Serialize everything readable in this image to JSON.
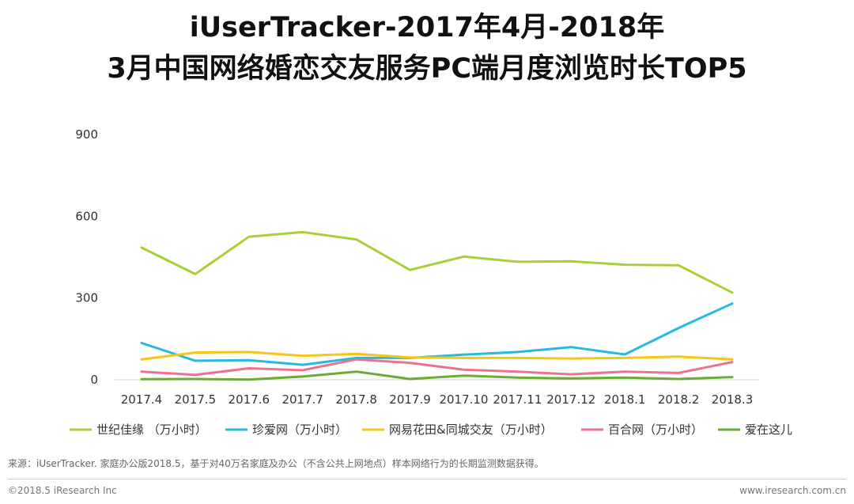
{
  "page": {
    "title_line1": "iUserTracker-2017年4月-2018年",
    "title_line2": "3月中国网络婚恋交友服务PC端月度浏览时长TOP5",
    "source": "来源：iUserTracker. 家庭办公版2018.5，基于对40万名家庭及办公（不含公共上网地点）样本网络行为的长期监测数据获得。",
    "copyright": "©2018.5 iResearch Inc",
    "website": "www.iresearch.com.cn"
  },
  "chart_data": {
    "type": "line",
    "title": "iUserTracker-2017年4月-2018年3月中国网络婚恋交友服务PC端月度浏览时长TOP5",
    "xlabel": "",
    "ylabel": "",
    "categories": [
      "2017.4",
      "2017.5",
      "2017.6",
      "2017.7",
      "2017.8",
      "2017.9",
      "2017.10",
      "2017.11",
      "2017.12",
      "2018.1",
      "2018.2",
      "2018.3"
    ],
    "yticks": [
      0,
      300,
      600,
      900
    ],
    "ylim": [
      0,
      900
    ],
    "grid": false,
    "legend_position": "bottom",
    "series": [
      {
        "name": "世纪佳缘 （万小时）",
        "color": "#a9cf38",
        "values": [
          485,
          388,
          525,
          542,
          515,
          403,
          452,
          433,
          435,
          422,
          420,
          320
        ]
      },
      {
        "name": "珍爱网（万小时）",
        "color": "#2bb8de",
        "values": [
          135,
          70,
          72,
          55,
          80,
          80,
          92,
          102,
          120,
          93,
          190,
          280
        ]
      },
      {
        "name": "网易花田&同城交友（万小时）",
        "color": "#f5c518",
        "values": [
          75,
          100,
          102,
          88,
          95,
          82,
          80,
          80,
          78,
          80,
          85,
          75
        ]
      },
      {
        "name": "百合网（万小时）",
        "color": "#ea7391",
        "values": [
          30,
          18,
          42,
          35,
          75,
          62,
          37,
          30,
          20,
          30,
          25,
          65
        ]
      },
      {
        "name": "爱在这儿",
        "color": "#6dab38",
        "values": [
          2,
          3,
          1,
          12,
          30,
          3,
          15,
          8,
          5,
          8,
          3,
          10
        ]
      }
    ]
  }
}
